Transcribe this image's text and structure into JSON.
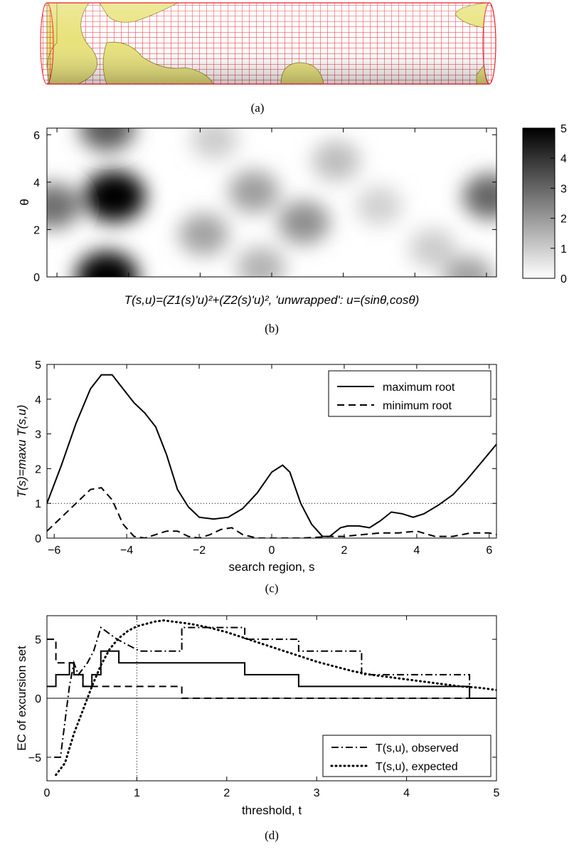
{
  "captions": {
    "a": "(a)",
    "b": "(b)",
    "c": "(c)",
    "d": "(d)"
  },
  "tube": {
    "mesh_color": "#e8202a",
    "surface_color": "#e8e27a"
  },
  "chart_data": [
    {
      "id": "b",
      "type": "heatmap",
      "xlabel": "T(s,u)=(Z1(s)'u)²+(Z2(s)'u)², 'unwrapped': u=(sinθ,cosθ)",
      "ylabel": "θ",
      "xlim": [
        -6.28,
        6.28
      ],
      "ylim": [
        0,
        6.28
      ],
      "yticks": [
        0,
        2,
        4,
        6
      ],
      "colorbar": {
        "ticks": [
          0,
          1,
          2,
          3,
          4,
          5
        ],
        "range": [
          0,
          5
        ],
        "cmap": "gray_reversed"
      },
      "blobs": [
        {
          "s": -4.6,
          "theta": 0.0,
          "value": 5.0
        },
        {
          "s": -4.6,
          "theta": 6.28,
          "value": 3.2
        },
        {
          "s": -4.4,
          "theta": 3.4,
          "value": 5.0
        },
        {
          "s": -1.9,
          "theta": 1.8,
          "value": 1.8
        },
        {
          "s": -0.5,
          "theta": 3.6,
          "value": 1.9
        },
        {
          "s": 0.9,
          "theta": 2.3,
          "value": 2.2
        },
        {
          "s": 1.8,
          "theta": 4.9,
          "value": 1.3
        },
        {
          "s": -0.3,
          "theta": 0.4,
          "value": 1.5
        },
        {
          "s": -6.1,
          "theta": 3.0,
          "value": 2.8
        },
        {
          "s": 6.1,
          "theta": 3.4,
          "value": 3.0
        },
        {
          "s": 3.0,
          "theta": 3.0,
          "value": 0.9
        },
        {
          "s": 4.5,
          "theta": 1.2,
          "value": 1.0
        },
        {
          "s": -1.6,
          "theta": 5.8,
          "value": 1.0
        },
        {
          "s": 5.5,
          "theta": 0.0,
          "value": 1.8
        }
      ]
    },
    {
      "id": "c",
      "type": "line",
      "xlabel": "search region, s",
      "ylabel": "T(s)=maxu T(s,u)",
      "xlim": [
        -6.2,
        6.2
      ],
      "ylim": [
        0,
        5
      ],
      "xticks": [
        -6,
        -4,
        -2,
        0,
        2,
        4,
        6
      ],
      "yticks": [
        0,
        1,
        2,
        3,
        4,
        5
      ],
      "reference_line": 1,
      "legend": {
        "position": "top-right"
      },
      "series": [
        {
          "name": "maximum root",
          "style": "solid",
          "x": [
            -6.2,
            -5.8,
            -5.4,
            -5.0,
            -4.7,
            -4.4,
            -4.1,
            -3.8,
            -3.5,
            -3.2,
            -2.9,
            -2.6,
            -2.3,
            -2.0,
            -1.6,
            -1.2,
            -0.8,
            -0.4,
            0.0,
            0.3,
            0.5,
            0.8,
            1.1,
            1.4,
            1.6,
            1.9,
            2.1,
            2.4,
            2.7,
            3.0,
            3.3,
            3.6,
            3.9,
            4.2,
            4.6,
            5.0,
            5.4,
            5.8,
            6.2
          ],
          "y": [
            1.0,
            2.1,
            3.3,
            4.3,
            4.7,
            4.7,
            4.3,
            3.9,
            3.6,
            3.2,
            2.4,
            1.4,
            0.9,
            0.6,
            0.55,
            0.6,
            0.85,
            1.3,
            1.9,
            2.1,
            1.9,
            1.0,
            0.4,
            0.05,
            0.05,
            0.3,
            0.35,
            0.35,
            0.3,
            0.5,
            0.75,
            0.7,
            0.6,
            0.7,
            0.95,
            1.25,
            1.7,
            2.2,
            2.7
          ]
        },
        {
          "name": "minimum root",
          "style": "dashed",
          "x": [
            -6.2,
            -5.9,
            -5.6,
            -5.3,
            -5.0,
            -4.7,
            -4.4,
            -4.1,
            -3.8,
            -3.5,
            -3.2,
            -2.9,
            -2.6,
            -2.3,
            -2.0,
            -1.7,
            -1.4,
            -1.1,
            -0.8,
            -0.4,
            0.0,
            0.4,
            0.8,
            1.2,
            1.6,
            2.0,
            2.5,
            3.0,
            3.5,
            4.0,
            4.5,
            5.0,
            5.5,
            6.0,
            6.2
          ],
          "y": [
            0.2,
            0.5,
            0.8,
            1.1,
            1.4,
            1.45,
            1.1,
            0.4,
            0.05,
            0.0,
            0.1,
            0.2,
            0.2,
            0.05,
            0.0,
            0.1,
            0.25,
            0.3,
            0.1,
            0.0,
            0.0,
            0.0,
            0.0,
            0.02,
            0.05,
            0.05,
            0.1,
            0.15,
            0.15,
            0.2,
            0.05,
            0.05,
            0.15,
            0.15,
            0.1
          ]
        }
      ]
    },
    {
      "id": "d",
      "type": "line",
      "xlabel": "threshold, t",
      "ylabel": "EC of excursion set",
      "xlim": [
        0,
        5
      ],
      "ylim": [
        -7,
        7
      ],
      "xticks": [
        0,
        1,
        2,
        3,
        4,
        5
      ],
      "yticks": [
        -5,
        0,
        5
      ],
      "reference_line_x": 1,
      "reference_line_y": 0,
      "legend": {
        "position": "bottom-right"
      },
      "series": [
        {
          "name": "T(s,u), observed",
          "style": "dashdot",
          "x": [
            0.08,
            0.08,
            0.15,
            0.15,
            0.2,
            0.2,
            0.25,
            0.25,
            0.3,
            0.3,
            0.35,
            0.35,
            0.45,
            0.45,
            0.52,
            0.52,
            0.6,
            0.6,
            0.78,
            0.78,
            1.03,
            1.03,
            1.5,
            1.5,
            2.2,
            2.2,
            2.8,
            2.8,
            3.5,
            3.5,
            4.7,
            4.7,
            5.0
          ],
          "y": [
            -5,
            -5,
            -5,
            -5,
            -2,
            -2,
            1,
            1,
            3,
            3,
            2,
            2,
            3,
            3,
            4,
            4,
            6,
            6,
            5,
            5,
            4,
            4,
            4,
            6,
            6,
            5,
            5,
            4,
            4,
            2,
            2,
            0,
            0
          ]
        },
        {
          "name": "T(s,u), expected",
          "style": "dotted",
          "x": [
            0.1,
            0.2,
            0.3,
            0.4,
            0.5,
            0.6,
            0.7,
            0.8,
            0.9,
            1.0,
            1.1,
            1.2,
            1.3,
            1.4,
            1.5,
            1.6,
            1.8,
            2.0,
            2.2,
            2.4,
            2.6,
            2.8,
            3.0,
            3.2,
            3.4,
            3.6,
            3.8,
            4.0,
            4.2,
            4.4,
            4.6,
            4.8,
            5.0
          ],
          "y": [
            -6.5,
            -5.5,
            -3.0,
            -1.0,
            1.0,
            2.8,
            4.2,
            5.1,
            5.7,
            6.1,
            6.3,
            6.5,
            6.6,
            6.5,
            6.4,
            6.3,
            6.0,
            5.6,
            5.1,
            4.6,
            4.1,
            3.6,
            3.1,
            2.7,
            2.3,
            2.0,
            1.8,
            1.6,
            1.4,
            1.2,
            1.0,
            0.9,
            0.7
          ]
        },
        {
          "name": "",
          "style": "solid",
          "x": [
            0.0,
            0.1,
            0.1,
            0.25,
            0.25,
            0.3,
            0.3,
            0.4,
            0.4,
            0.5,
            0.5,
            0.6,
            0.6,
            0.8,
            0.8,
            2.2,
            2.2,
            2.8,
            2.8,
            4.7,
            4.7,
            5.0
          ],
          "y": [
            1,
            1,
            2,
            2,
            3,
            3,
            2,
            2,
            1,
            1,
            2,
            2,
            4,
            4,
            3,
            3,
            2,
            2,
            1,
            1,
            0,
            0
          ]
        },
        {
          "name": "",
          "style": "dashed",
          "x": [
            0.0,
            0.1,
            0.1,
            0.3,
            0.3,
            0.4,
            0.4,
            0.5,
            0.5,
            1.5,
            1.5,
            5.0
          ],
          "y": [
            5,
            5,
            3,
            3,
            2,
            2,
            1,
            1,
            1,
            1,
            0,
            0
          ]
        }
      ]
    }
  ]
}
